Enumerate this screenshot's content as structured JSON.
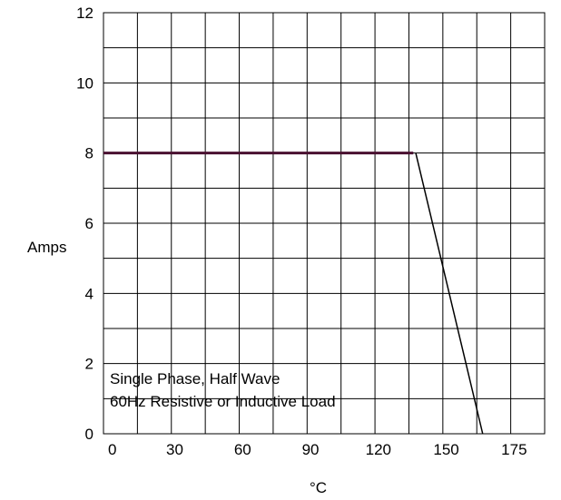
{
  "chart_data": {
    "type": "line",
    "xlabel": "°C",
    "ylabel": "Amps",
    "x_tick_labels": [
      "0",
      "30",
      "60",
      "90",
      "120",
      "150",
      "175"
    ],
    "y_tick_labels": [
      "0",
      "2",
      "4",
      "6",
      "8",
      "10",
      "12"
    ],
    "xlim": [
      0,
      178
    ],
    "ylim": [
      0,
      12
    ],
    "grid": true,
    "annotation_lines": [
      "Single Phase, Half Wave",
      "60Hz Resistive or Inductive Load"
    ],
    "series": [
      {
        "color": "#4a1030",
        "points": [
          [
            0,
            8
          ],
          [
            125,
            8
          ]
        ]
      },
      {
        "color": "#000000",
        "points": [
          [
            126,
            8
          ],
          [
            153,
            0
          ]
        ]
      }
    ]
  }
}
